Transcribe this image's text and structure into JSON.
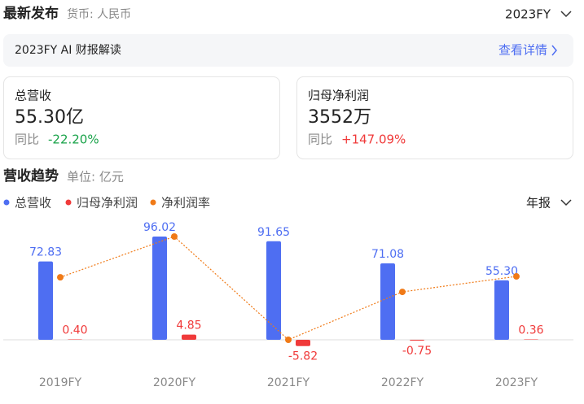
{
  "header": {
    "title": "最新发布",
    "currency": "货币: 人民币",
    "period": "2023FY"
  },
  "banner": {
    "title": "2023FY AI 财报解读",
    "link": "查看详情"
  },
  "cards": [
    {
      "label": "总营收",
      "value": "55.30亿",
      "change_label": "同比",
      "change": "-22.20%"
    },
    {
      "label": "归母净利润",
      "value": "3552万",
      "change_label": "同比",
      "change": "+147.09%"
    }
  ],
  "section": {
    "title": "营收趋势",
    "unit": "单位: 亿元",
    "period_type": "年报"
  },
  "chart_data": {
    "type": "bar",
    "categories": [
      "2019FY",
      "2020FY",
      "2021FY",
      "2022FY",
      "2023FY"
    ],
    "series": [
      {
        "name": "总营收",
        "color": "#4e6ef2",
        "values": [
          72.83,
          96.02,
          91.65,
          71.08,
          55.3
        ],
        "value_labels": [
          "72.83",
          "96.02",
          "91.65",
          "71.08",
          "55.30"
        ]
      },
      {
        "name": "归母净利润",
        "color": "#f03a3a",
        "values": [
          0.4,
          4.85,
          -5.82,
          -0.75,
          0.36
        ],
        "value_labels": [
          "0.40",
          "4.85",
          "-5.82",
          "-0.75",
          "0.36"
        ]
      },
      {
        "name": "净利润率",
        "color": "#f07a17",
        "type": "line",
        "values": [
          0.55,
          5.05,
          -6.35,
          -1.06,
          0.65
        ]
      }
    ]
  }
}
